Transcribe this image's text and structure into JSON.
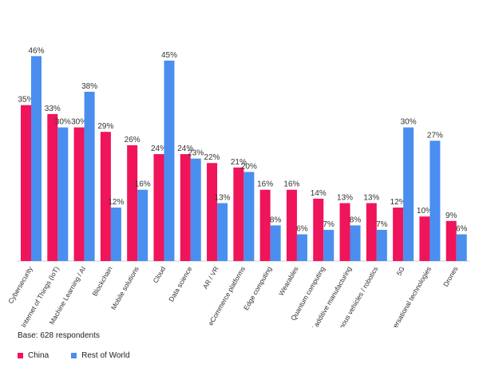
{
  "chart_data": {
    "type": "bar",
    "categories": [
      "Cybersecurity",
      "Internet of Things (IoT)",
      "Machine Learning / AI",
      "Blockchain",
      "Mobile solutions",
      "Cloud",
      "Data science",
      "AR / VR",
      "eCommerce platforms",
      "Edge computing",
      "Wearables",
      "Quantum computing",
      "3D printing / additive manufacturing",
      "Autonomous vehicles / robotics",
      "5G",
      "Conversational technologies",
      "Drones"
    ],
    "series": [
      {
        "name": "China",
        "values": [
          35,
          33,
          30,
          29,
          26,
          24,
          24,
          22,
          21,
          16,
          16,
          14,
          13,
          13,
          12,
          10,
          9
        ]
      },
      {
        "name": "Rest of World",
        "values": [
          46,
          30,
          38,
          12,
          16,
          45,
          23,
          13,
          20,
          8,
          6,
          7,
          8,
          7,
          30,
          27,
          6
        ]
      }
    ],
    "value_suffix": "%",
    "ylim": [
      0,
      50
    ],
    "grid": false,
    "legend": "bottom-left",
    "colors": {
      "China": "#f0145a",
      "Rest of World": "#4a8ef0"
    }
  },
  "note": "Base: 628 respondents",
  "legend_labels": [
    "China",
    "Rest of World"
  ]
}
